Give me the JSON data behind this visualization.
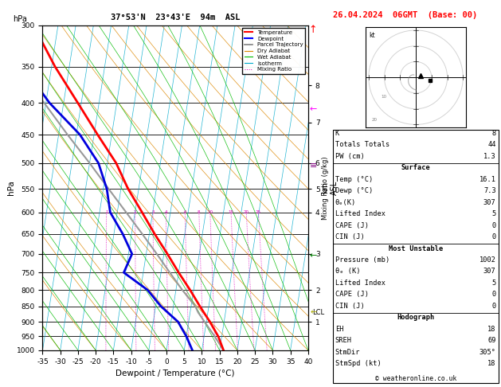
{
  "title_left": "37°53'N  23°43'E  94m  ASL",
  "title_right": "26.04.2024  06GMT  (Base: 00)",
  "xlabel": "Dewpoint / Temperature (°C)",
  "ylabel_left": "hPa",
  "xlim": [
    -35,
    40
  ],
  "pressure_ticks": [
    300,
    350,
    400,
    450,
    500,
    550,
    600,
    650,
    700,
    750,
    800,
    850,
    900,
    950,
    1000
  ],
  "temp_profile": {
    "pressure": [
      1000,
      950,
      900,
      850,
      800,
      750,
      700,
      650,
      600,
      550,
      500,
      450,
      400,
      350,
      300
    ],
    "temp": [
      16.1,
      14.0,
      11.0,
      7.5,
      4.0,
      0.0,
      -4.0,
      -8.5,
      -13.0,
      -18.0,
      -22.5,
      -29.0,
      -36.0,
      -44.0,
      -52.0
    ]
  },
  "dewp_profile": {
    "pressure": [
      1000,
      950,
      900,
      850,
      800,
      750,
      700,
      650,
      600,
      550,
      500,
      450,
      400,
      350,
      300
    ],
    "temp": [
      7.3,
      5.0,
      2.0,
      -3.5,
      -8.0,
      -15.5,
      -14.0,
      -17.5,
      -22.0,
      -24.0,
      -27.5,
      -34.0,
      -44.0,
      -53.0,
      -65.0
    ]
  },
  "parcel_profile": {
    "pressure": [
      1000,
      950,
      900,
      870,
      850,
      800,
      750,
      700,
      650,
      600,
      550,
      500,
      450,
      400,
      350,
      300
    ],
    "temp": [
      16.1,
      13.0,
      9.5,
      7.3,
      6.2,
      1.8,
      -2.5,
      -7.0,
      -12.0,
      -17.5,
      -23.5,
      -30.0,
      -37.5,
      -45.5,
      -54.5,
      -64.0
    ]
  },
  "km_ticks": [
    1,
    2,
    3,
    4,
    5,
    6,
    7,
    8
  ],
  "km_pressures": [
    900,
    800,
    700,
    600,
    550,
    500,
    430,
    375
  ],
  "mixing_ratio_labels": [
    1,
    2,
    3,
    4,
    6,
    8,
    10,
    15,
    20,
    25
  ],
  "skew_factor": 27.5,
  "dry_adiabat_color": "#dd8800",
  "wet_adiabat_color": "#00bb00",
  "isotherm_color": "#00aacc",
  "mixing_ratio_color": "#dd00bb",
  "temp_color": "#ff0000",
  "dewp_color": "#0000dd",
  "parcel_color": "#999999",
  "lcl_pressure": 870,
  "copyright": "© weatheronline.co.uk",
  "info": {
    "K": "8",
    "Totals Totals": "44",
    "PW (cm)": "1.3",
    "Surface_Temp": "16.1",
    "Surface_Dewp": "7.3",
    "Surface_theta_e": "307",
    "Surface_LI": "5",
    "Surface_CAPE": "0",
    "Surface_CIN": "0",
    "MU_Pressure": "1002",
    "MU_theta_e": "307",
    "MU_LI": "5",
    "MU_CAPE": "0",
    "MU_CIN": "0",
    "Hodo_EH": "18",
    "Hodo_SREH": "69",
    "Hodo_StmDir": "305°",
    "Hodo_StmSpd": "18"
  }
}
